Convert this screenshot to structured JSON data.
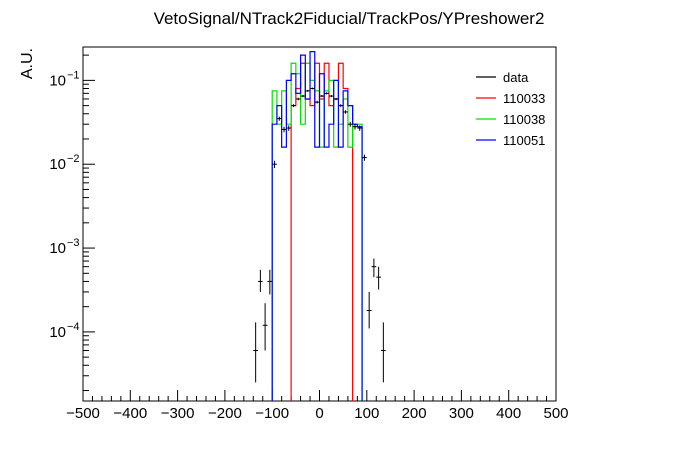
{
  "chart_data": {
    "type": "histogram",
    "title": "VetoSignal/NTrack2Fiducial/TrackPos/YPreshower2",
    "ylabel": "A.U.",
    "xlabel": "",
    "xlim": [
      -500,
      500
    ],
    "ylim": [
      1.5e-05,
      0.25
    ],
    "yscale": "log",
    "bin_width": 10,
    "x_ticks": [
      "−500",
      "−400",
      "−300",
      "−200",
      "−100",
      "0",
      "100",
      "200",
      "300",
      "400",
      "500"
    ],
    "x_tick_values": [
      -500,
      -400,
      -300,
      -200,
      -100,
      0,
      100,
      200,
      300,
      400,
      500
    ],
    "y_ticks": [
      {
        "value": 0.0001,
        "base": "10",
        "exp": "−4"
      },
      {
        "value": 0.001,
        "base": "10",
        "exp": "−3"
      },
      {
        "value": 0.01,
        "base": "10",
        "exp": "−2"
      },
      {
        "value": 0.1,
        "base": "10",
        "exp": "−1"
      }
    ],
    "legend_position": "top-right",
    "series": [
      {
        "name": "110033",
        "color": "#ff0000",
        "style": "step",
        "bins": [
          {
            "x0": -60,
            "x1": -50,
            "y": 0.05
          },
          {
            "x0": -50,
            "x1": -40,
            "y": 0.08
          },
          {
            "x0": -40,
            "x1": -30,
            "y": 0.16
          },
          {
            "x0": -30,
            "x1": -20,
            "y": 0.06
          },
          {
            "x0": -20,
            "x1": -10,
            "y": 0.05
          },
          {
            "x0": -10,
            "x1": 0,
            "y": 0.16
          },
          {
            "x0": 0,
            "x1": 10,
            "y": 0.06
          },
          {
            "x0": 10,
            "x1": 20,
            "y": 0.16
          },
          {
            "x0": 20,
            "x1": 30,
            "y": 0.05
          },
          {
            "x0": 30,
            "x1": 40,
            "y": 0.06
          },
          {
            "x0": 40,
            "x1": 50,
            "y": 0.16
          },
          {
            "x0": 50,
            "x1": 60,
            "y": 0.08
          },
          {
            "x0": 60,
            "x1": 70,
            "y": 0.05
          }
        ]
      },
      {
        "name": "110038",
        "color": "#00e000",
        "style": "step",
        "bins": [
          {
            "x0": -100,
            "x1": -90,
            "y": 0.075
          },
          {
            "x0": -90,
            "x1": -80,
            "y": 0.03
          },
          {
            "x0": -80,
            "x1": -70,
            "y": 0.075
          },
          {
            "x0": -70,
            "x1": -60,
            "y": 0.03
          },
          {
            "x0": -60,
            "x1": -50,
            "y": 0.16
          },
          {
            "x0": -50,
            "x1": -40,
            "y": 0.12
          },
          {
            "x0": -40,
            "x1": -30,
            "y": 0.03
          },
          {
            "x0": -30,
            "x1": -20,
            "y": 0.16
          },
          {
            "x0": -20,
            "x1": -10,
            "y": 0.1
          },
          {
            "x0": -10,
            "x1": 0,
            "y": 0.075
          },
          {
            "x0": 0,
            "x1": 10,
            "y": 0.016
          },
          {
            "x0": 10,
            "x1": 20,
            "y": 0.075
          },
          {
            "x0": 20,
            "x1": 30,
            "y": 0.1
          },
          {
            "x0": 30,
            "x1": 40,
            "y": 0.016
          },
          {
            "x0": 40,
            "x1": 50,
            "y": 0.03
          },
          {
            "x0": 50,
            "x1": 60,
            "y": 0.06
          },
          {
            "x0": 60,
            "x1": 70,
            "y": 0.016
          },
          {
            "x0": 70,
            "x1": 80,
            "y": 0.03
          },
          {
            "x0": 80,
            "x1": 90,
            "y": 0.03
          }
        ]
      },
      {
        "name": "110051",
        "color": "#0000ff",
        "style": "step",
        "bins": [
          {
            "x0": -100,
            "x1": -90,
            "y": 0.03
          },
          {
            "x0": -90,
            "x1": -80,
            "y": 0.05
          },
          {
            "x0": -80,
            "x1": -70,
            "y": 0.016
          },
          {
            "x0": -70,
            "x1": -60,
            "y": 0.1
          },
          {
            "x0": -60,
            "x1": -50,
            "y": 0.12
          },
          {
            "x0": -50,
            "x1": -40,
            "y": 0.07
          },
          {
            "x0": -40,
            "x1": -30,
            "y": 0.2
          },
          {
            "x0": -30,
            "x1": -20,
            "y": 0.06
          },
          {
            "x0": -20,
            "x1": -10,
            "y": 0.22
          },
          {
            "x0": -10,
            "x1": 0,
            "y": 0.016
          },
          {
            "x0": 0,
            "x1": 10,
            "y": 0.12
          },
          {
            "x0": 10,
            "x1": 20,
            "y": 0.016
          },
          {
            "x0": 20,
            "x1": 30,
            "y": 0.03
          },
          {
            "x0": 30,
            "x1": 40,
            "y": 0.1
          },
          {
            "x0": 40,
            "x1": 50,
            "y": 0.016
          },
          {
            "x0": 50,
            "x1": 60,
            "y": 0.075
          },
          {
            "x0": 60,
            "x1": 70,
            "y": 0.05
          },
          {
            "x0": 70,
            "x1": 80,
            "y": 0.03
          },
          {
            "x0": 80,
            "x1": 90,
            "y": 0.028
          }
        ]
      },
      {
        "name": "data",
        "color": "#000000",
        "style": "points",
        "points": [
          {
            "x": -135,
            "y": 6e-05,
            "ylo": 2.5e-05,
            "yhi": 0.00013
          },
          {
            "x": -125,
            "y": 0.0004,
            "ylo": 0.0003,
            "yhi": 0.00055
          },
          {
            "x": -115,
            "y": 0.00012,
            "ylo": 6e-05,
            "yhi": 0.00022
          },
          {
            "x": -105,
            "y": 0.0004,
            "ylo": 0.00028,
            "yhi": 0.00055
          },
          {
            "x": -95,
            "y": 0.01,
            "ylo": 0.009,
            "yhi": 0.011
          },
          {
            "x": -85,
            "y": 0.035,
            "ylo": 0.033,
            "yhi": 0.037
          },
          {
            "x": -75,
            "y": 0.026,
            "ylo": 0.024,
            "yhi": 0.028
          },
          {
            "x": -65,
            "y": 0.027,
            "ylo": 0.025,
            "yhi": 0.029
          },
          {
            "x": -55,
            "y": 0.05,
            "ylo": 0.048,
            "yhi": 0.052
          },
          {
            "x": -45,
            "y": 0.06,
            "ylo": 0.058,
            "yhi": 0.062
          },
          {
            "x": -35,
            "y": 0.065,
            "ylo": 0.063,
            "yhi": 0.067
          },
          {
            "x": -25,
            "y": 0.075,
            "ylo": 0.073,
            "yhi": 0.077
          },
          {
            "x": -15,
            "y": 0.08,
            "ylo": 0.078,
            "yhi": 0.082
          },
          {
            "x": -5,
            "y": 0.055,
            "ylo": 0.053,
            "yhi": 0.057
          },
          {
            "x": 5,
            "y": 0.065,
            "ylo": 0.063,
            "yhi": 0.067
          },
          {
            "x": 15,
            "y": 0.07,
            "ylo": 0.068,
            "yhi": 0.072
          },
          {
            "x": 25,
            "y": 0.065,
            "ylo": 0.063,
            "yhi": 0.067
          },
          {
            "x": 35,
            "y": 0.06,
            "ylo": 0.058,
            "yhi": 0.062
          },
          {
            "x": 45,
            "y": 0.05,
            "ylo": 0.048,
            "yhi": 0.052
          },
          {
            "x": 55,
            "y": 0.042,
            "ylo": 0.04,
            "yhi": 0.044
          },
          {
            "x": 65,
            "y": 0.03,
            "ylo": 0.028,
            "yhi": 0.032
          },
          {
            "x": 75,
            "y": 0.028,
            "ylo": 0.026,
            "yhi": 0.03
          },
          {
            "x": 85,
            "y": 0.027,
            "ylo": 0.025,
            "yhi": 0.029
          },
          {
            "x": 95,
            "y": 0.012,
            "ylo": 0.011,
            "yhi": 0.013
          },
          {
            "x": 105,
            "y": 0.00018,
            "ylo": 0.00011,
            "yhi": 0.0003
          },
          {
            "x": 115,
            "y": 0.0006,
            "ylo": 0.00045,
            "yhi": 0.00075
          },
          {
            "x": 125,
            "y": 0.00045,
            "ylo": 0.00032,
            "yhi": 0.0006
          },
          {
            "x": 135,
            "y": 6e-05,
            "ylo": 2.5e-05,
            "yhi": 0.00013
          }
        ]
      }
    ]
  }
}
